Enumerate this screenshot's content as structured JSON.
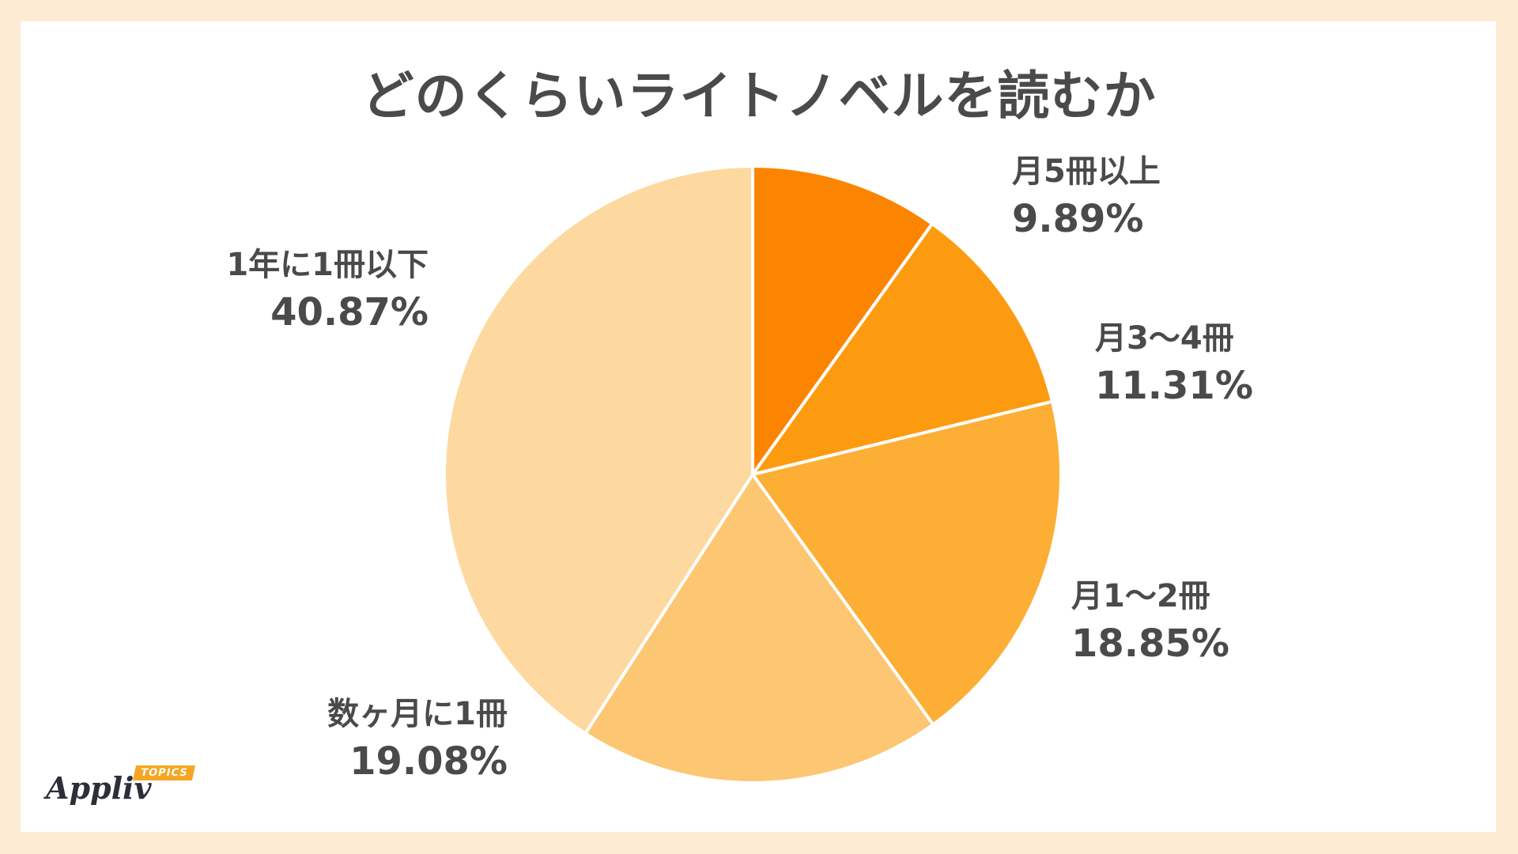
{
  "chart_data": {
    "type": "pie",
    "title": "どのくらいライトノベルを読むか",
    "slices": [
      {
        "label": "月5冊以上",
        "value": 9.89,
        "value_label": "9.89%",
        "color": "#fb8500"
      },
      {
        "label": "月3〜4冊",
        "value": 11.31,
        "value_label": "11.31%",
        "color": "#fd9b10"
      },
      {
        "label": "月1〜2冊",
        "value": 18.85,
        "value_label": "18.85%",
        "color": "#fdae35"
      },
      {
        "label": "数ヶ月に1冊",
        "value": 19.08,
        "value_label": "19.08%",
        "color": "#fdc672"
      },
      {
        "label": "1年に1冊以下",
        "value": 40.87,
        "value_label": "40.87%",
        "color": "#fdd9a0"
      }
    ]
  },
  "branding": {
    "logo_text": "Appliv",
    "logo_badge": "TOPICS"
  }
}
